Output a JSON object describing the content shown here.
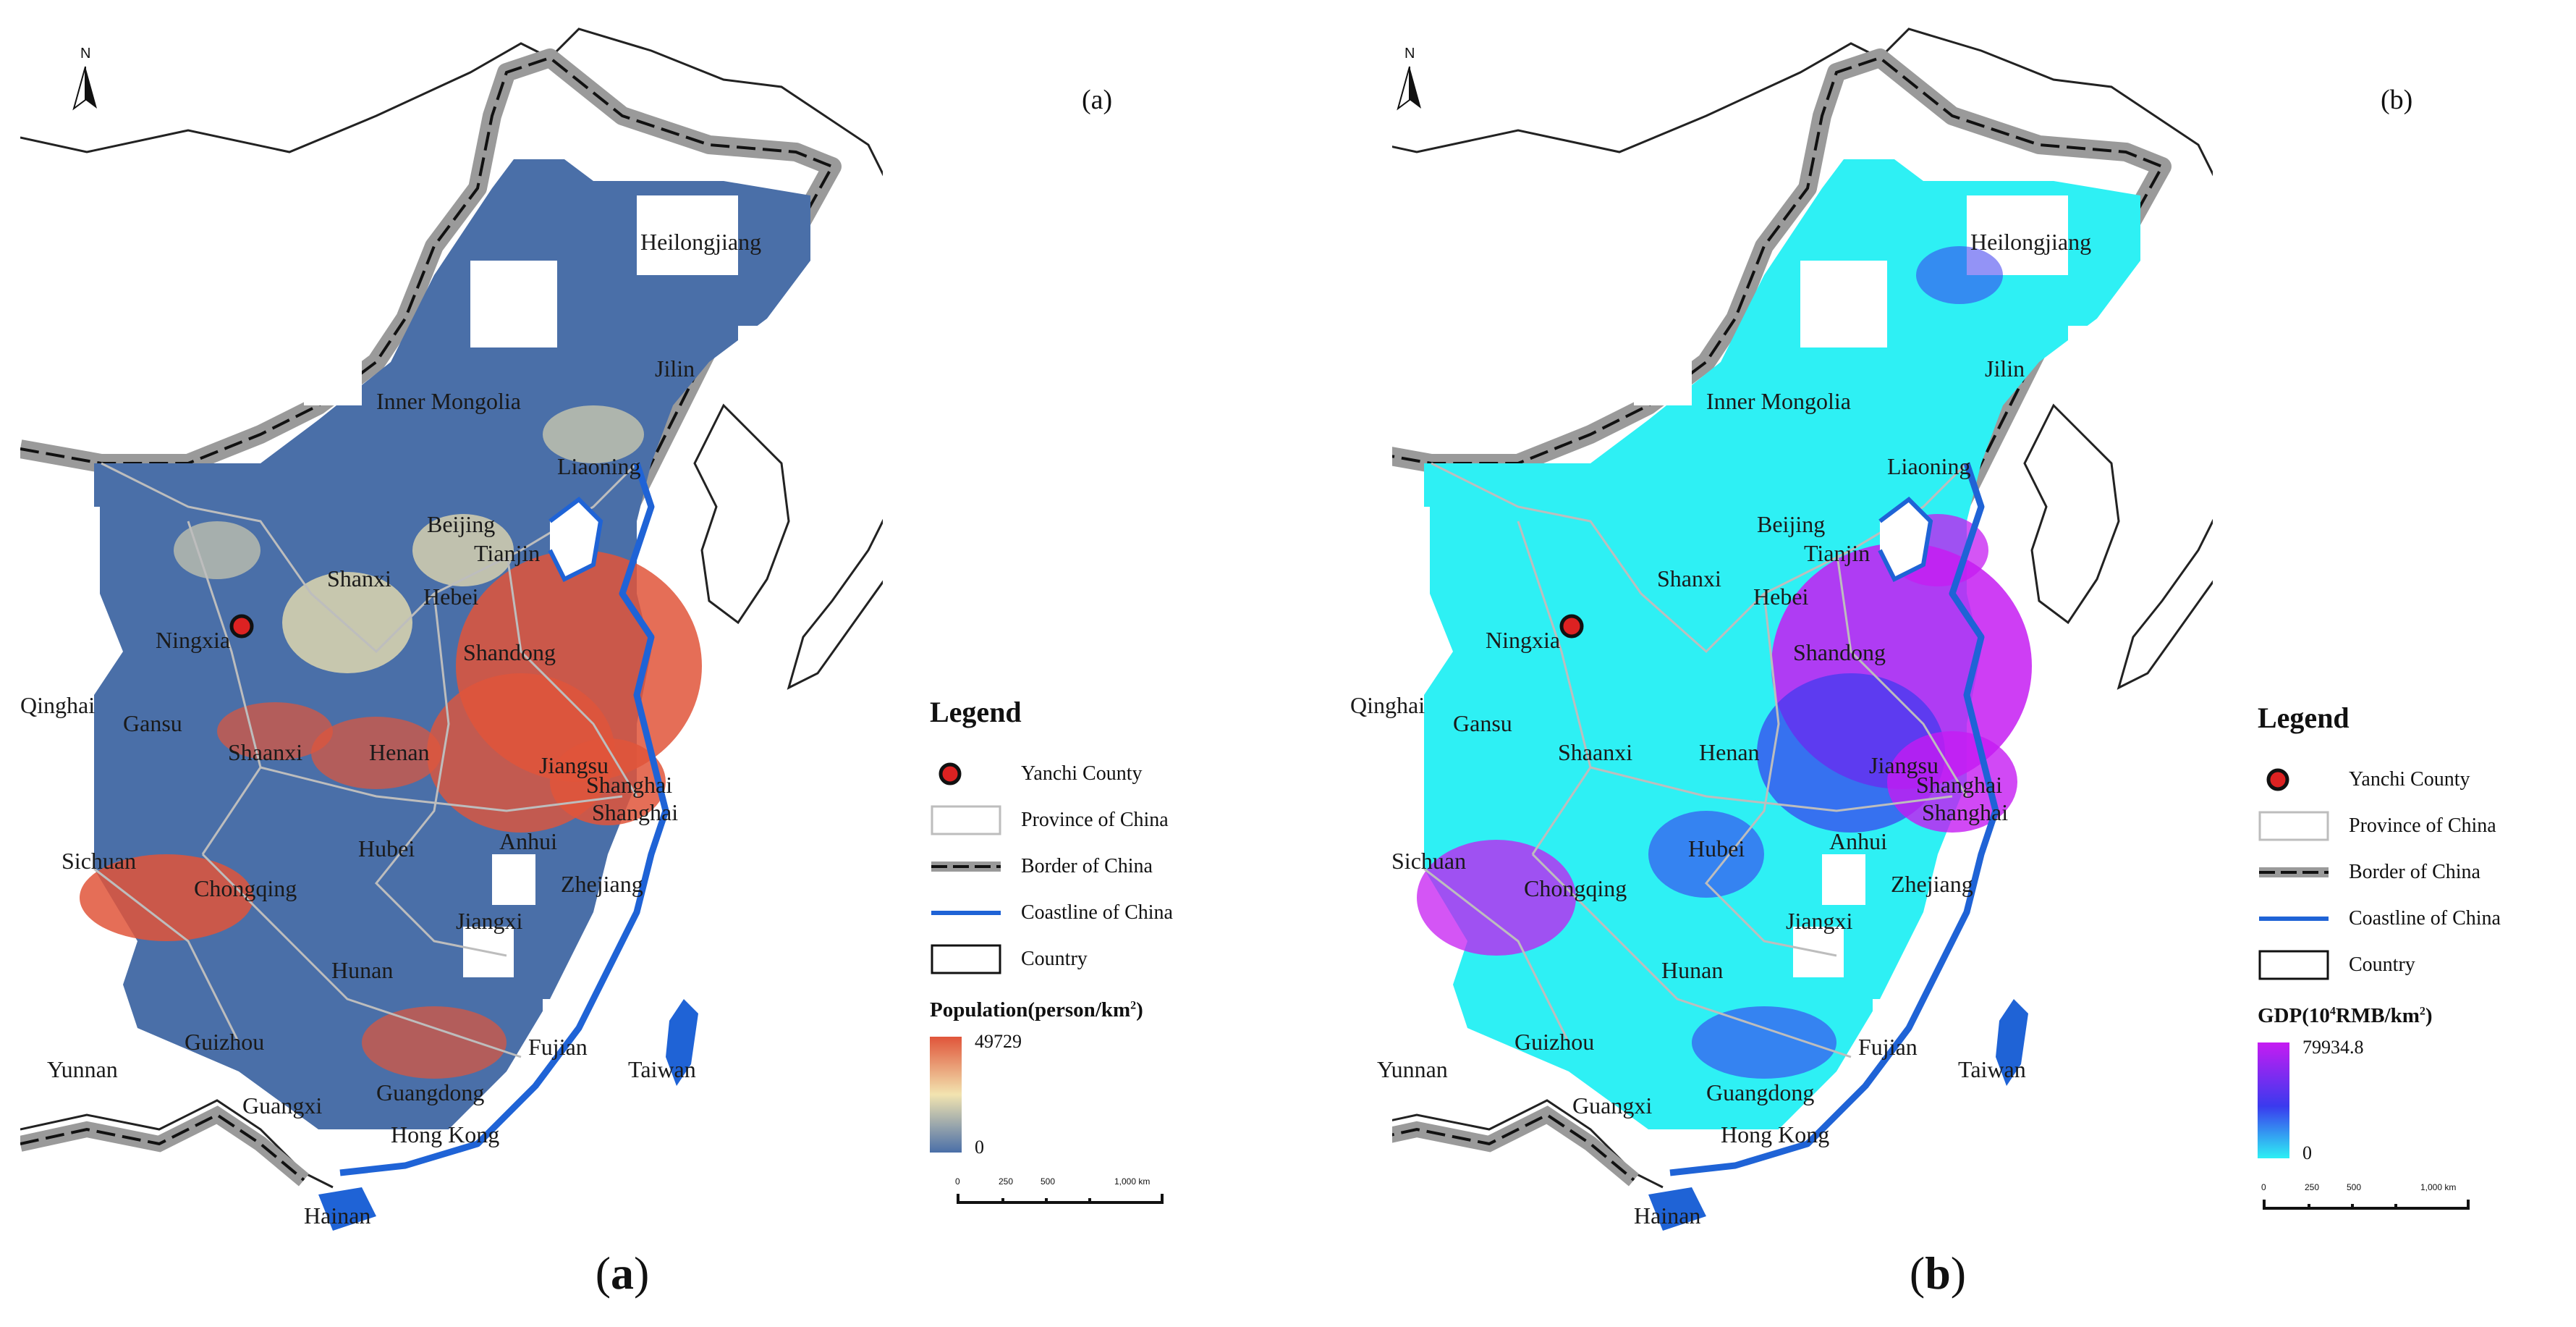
{
  "panels": [
    {
      "id": "a",
      "tag": "(a)",
      "caption_open": "(",
      "caption_letter": "a",
      "caption_close": ")",
      "ramp_title": "Population(person/km",
      "ramp_sup": "2",
      "ramp_title_close": ")",
      "ramp_max": "49729",
      "ramp_min": "0",
      "colors": {
        "low": "#4a6fa8",
        "mid": "#f2e4b0",
        "high": "#e0553a"
      }
    },
    {
      "id": "b",
      "tag": "(b)",
      "caption_open": "(",
      "caption_letter": "b",
      "caption_close": ")",
      "ramp_title": "GDP(10",
      "ramp_sup": "4",
      "ramp_title_mid": "RMB/km",
      "ramp_sup2": "2",
      "ramp_title_close": ")",
      "ramp_max": "79934.8",
      "ramp_min": "0",
      "colors": {
        "low": "#2ef0f4",
        "mid": "#3a3aee",
        "high": "#c61cf2"
      }
    }
  ],
  "north_arrow": "N",
  "legend": {
    "title": "Legend",
    "items": [
      {
        "label": "Yanchi County",
        "icon": "red-dot-icon"
      },
      {
        "label": "Province of China",
        "icon": "province-box-icon"
      },
      {
        "label": "Border of China",
        "icon": "border-line-icon"
      },
      {
        "label": "Coastline of China",
        "icon": "coastline-icon"
      },
      {
        "label": "Country",
        "icon": "country-box-icon"
      }
    ]
  },
  "scale": {
    "ticks": [
      "0",
      "250",
      "500",
      "1,000 km"
    ]
  },
  "labels": {
    "heilongjiang": "Heilongjiang",
    "jilin": "Jilin",
    "inner_mongolia": "Inner Mongolia",
    "liaoning": "Liaoning",
    "beijing": "Beijing",
    "tianjin": "Tianjin",
    "hebei": "Hebei",
    "shanxi": "Shanxi",
    "ningxia": "Ningxia",
    "shandong": "Shandong",
    "qinghai": "Qinghai",
    "gansu": "Gansu",
    "shaanxi": "Shaanxi",
    "henan": "Henan",
    "jiangsu": "Jiangsu",
    "shanghai": "Shanghai",
    "sichuan": "Sichuan",
    "hubei": "Hubei",
    "anhui": "Anhui",
    "chongqing": "Chongqing",
    "zhejiang": "Zhejiang",
    "jiangxi": "Jiangxi",
    "hunan": "Hunan",
    "guizhou": "Guizhou",
    "fujian": "Fujian",
    "yunnan": "Yunnan",
    "taiwan": "Taiwan",
    "guangxi": "Guangxi",
    "guangdong": "Guangdong",
    "hong_kong": "Hong Kong",
    "hainan": "Hainan"
  }
}
